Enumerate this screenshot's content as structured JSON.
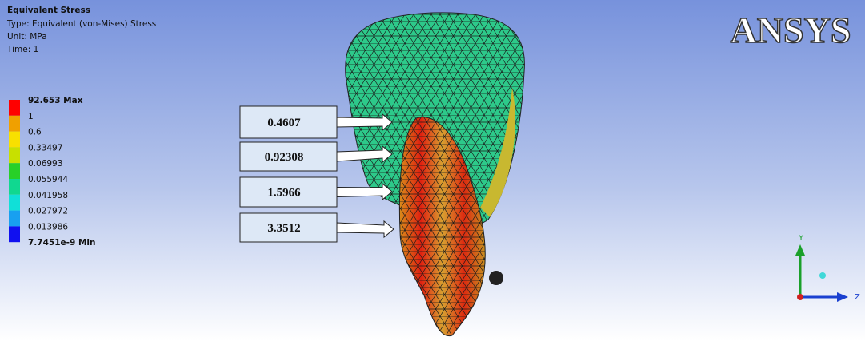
{
  "header": {
    "title": "Equivalent Stress",
    "type": "Type: Equivalent (von-Mises) Stress",
    "unit": "Unit: MPa",
    "time": "Time: 1"
  },
  "legend": {
    "labels": [
      "92.653 Max",
      "1",
      "0.6",
      "0.33497",
      "0.06993",
      "0.055944",
      "0.041958",
      "0.027972",
      "0.013986",
      "7.7451e-9 Min"
    ]
  },
  "callouts": [
    "0.4607",
    "0.92308",
    "1.5966",
    "3.3512"
  ],
  "logo": "ANSYS",
  "triad": {
    "y": "Y",
    "z": "Z"
  }
}
